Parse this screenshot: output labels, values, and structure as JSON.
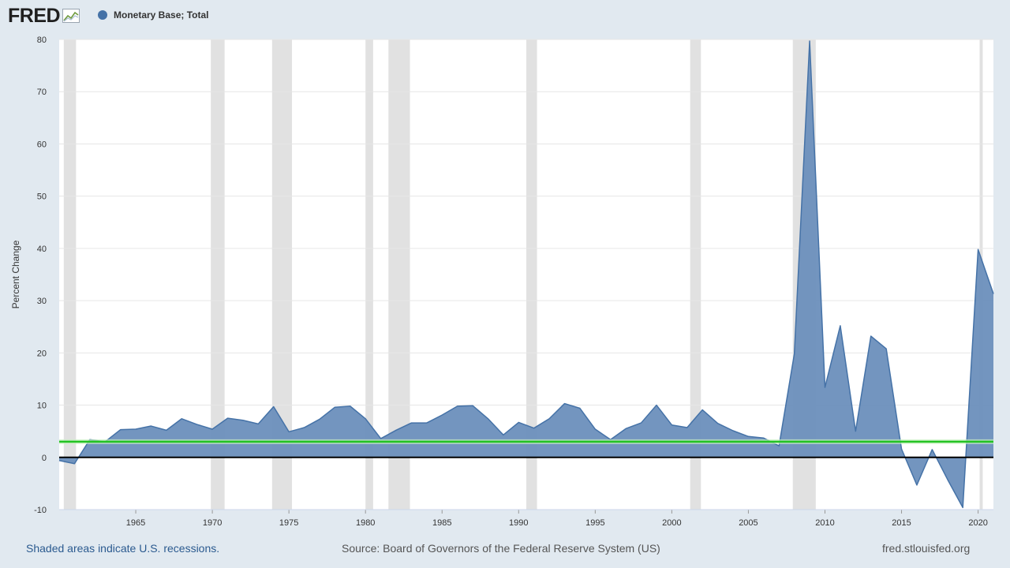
{
  "app": {
    "logo_text": "FRED",
    "logo_icon": "line-graph-icon"
  },
  "legend": {
    "series_label": "Monetary Base; Total",
    "marker_color": "#4572a7"
  },
  "footer": {
    "recession_note": "Shaded areas indicate U.S. recessions.",
    "source": "Source: Board of Governors of the Federal Reserve System (US)",
    "site": "fred.stlouisfed.org"
  },
  "chart_data": {
    "type": "area",
    "title": "",
    "xlabel": "",
    "ylabel": "Percent Change",
    "xlim": [
      1960.0,
      2021.0
    ],
    "ylim": [
      -10,
      80
    ],
    "yticks": [
      -10,
      0,
      10,
      20,
      30,
      40,
      50,
      60,
      70,
      80
    ],
    "xticks": [
      1965,
      1970,
      1975,
      1980,
      1985,
      1990,
      1995,
      2000,
      2005,
      2010,
      2015,
      2020
    ],
    "grid": true,
    "series_color": "#4572a7",
    "fill_color": "#6b8fbc",
    "zero_line_color": "#000000",
    "reference_line": {
      "value": 3,
      "color": "#22c322"
    },
    "recession_shading_color": "#e1e1e1",
    "recessions": [
      [
        1960.3,
        1961.1
      ],
      [
        1969.9,
        1970.8
      ],
      [
        1973.9,
        1975.2
      ],
      [
        1980.0,
        1980.5
      ],
      [
        1981.5,
        1982.9
      ],
      [
        1990.5,
        1991.2
      ],
      [
        2001.2,
        2001.9
      ],
      [
        2007.9,
        2009.4
      ],
      [
        2020.1,
        2020.3
      ]
    ],
    "series": [
      {
        "name": "Monetary Base; Total",
        "x": [
          1960,
          1961,
          1962,
          1963,
          1964,
          1965,
          1966,
          1967,
          1968,
          1969,
          1970,
          1971,
          1972,
          1973,
          1974,
          1975,
          1976,
          1977,
          1978,
          1979,
          1980,
          1981,
          1982,
          1983,
          1984,
          1985,
          1986,
          1987,
          1988,
          1989,
          1990,
          1991,
          1992,
          1993,
          1994,
          1995,
          1996,
          1997,
          1998,
          1999,
          2000,
          2001,
          2002,
          2003,
          2004,
          2005,
          2006,
          2007,
          2008,
          2009,
          2010,
          2011,
          2012,
          2013,
          2014,
          2015,
          2016,
          2017,
          2018,
          2019,
          2020,
          2021
        ],
        "values": [
          -0.6,
          -1.2,
          3.4,
          3.0,
          5.3,
          5.4,
          6.0,
          5.2,
          7.4,
          6.3,
          5.4,
          7.5,
          7.1,
          6.4,
          9.7,
          4.9,
          5.7,
          7.3,
          9.6,
          9.8,
          7.4,
          3.6,
          5.2,
          6.6,
          6.6,
          8.1,
          9.8,
          9.9,
          7.4,
          4.3,
          6.7,
          5.6,
          7.4,
          10.3,
          9.4,
          5.4,
          3.4,
          5.5,
          6.6,
          10.0,
          6.2,
          5.7,
          9.1,
          6.5,
          5.1,
          4.0,
          3.7,
          2.2,
          19.8,
          79.7,
          13.4,
          25.2,
          5.0,
          23.2,
          20.8,
          1.6,
          -5.3,
          1.5,
          -4.2,
          -9.6,
          39.8,
          31.3
        ]
      }
    ]
  }
}
